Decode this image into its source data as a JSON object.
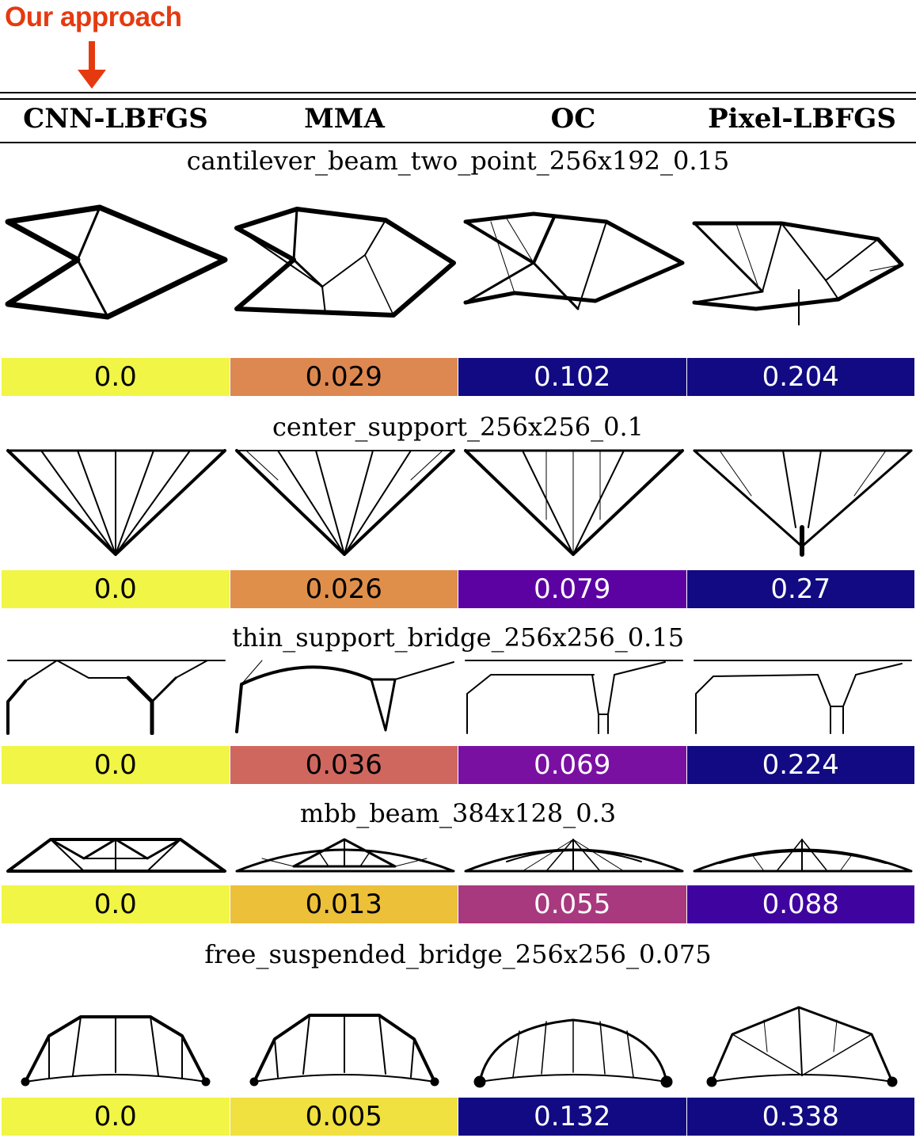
{
  "annotation": {
    "label": "Our approach",
    "color": "#e53a10"
  },
  "columns": [
    "CNN-LBFGS",
    "MMA",
    "OC",
    "Pixel-LBFGS"
  ],
  "rows": [
    {
      "title": "cantilever_beam_two_point_256x192_0.15",
      "scores": [
        {
          "value": "0.0",
          "bg": "#f1f545",
          "fg": "#000000"
        },
        {
          "value": "0.029",
          "bg": "#dd8850",
          "fg": "#000000"
        },
        {
          "value": "0.102",
          "bg": "#110a82",
          "fg": "#ffffff"
        },
        {
          "value": "0.204",
          "bg": "#110a82",
          "fg": "#ffffff"
        }
      ]
    },
    {
      "title": "center_support_256x256_0.1",
      "scores": [
        {
          "value": "0.0",
          "bg": "#f1f545",
          "fg": "#000000"
        },
        {
          "value": "0.026",
          "bg": "#e08f4a",
          "fg": "#000000"
        },
        {
          "value": "0.079",
          "bg": "#5c02a3",
          "fg": "#ffffff"
        },
        {
          "value": "0.27",
          "bg": "#110a82",
          "fg": "#ffffff"
        }
      ]
    },
    {
      "title": "thin_support_bridge_256x256_0.15",
      "scores": [
        {
          "value": "0.0",
          "bg": "#f1f545",
          "fg": "#000000"
        },
        {
          "value": "0.036",
          "bg": "#d0675e",
          "fg": "#000000"
        },
        {
          "value": "0.069",
          "bg": "#7a10a1",
          "fg": "#ffffff"
        },
        {
          "value": "0.224",
          "bg": "#110a82",
          "fg": "#ffffff"
        }
      ]
    },
    {
      "title": "mbb_beam_384x128_0.3",
      "scores": [
        {
          "value": "0.0",
          "bg": "#f1f545",
          "fg": "#000000"
        },
        {
          "value": "0.013",
          "bg": "#edc03a",
          "fg": "#000000"
        },
        {
          "value": "0.055",
          "bg": "#a8397e",
          "fg": "#ffffff"
        },
        {
          "value": "0.088",
          "bg": "#3f03a0",
          "fg": "#ffffff"
        }
      ]
    },
    {
      "title": "free_suspended_bridge_256x256_0.075",
      "scores": [
        {
          "value": "0.0",
          "bg": "#f1f545",
          "fg": "#000000"
        },
        {
          "value": "0.005",
          "bg": "#f0e040",
          "fg": "#000000"
        },
        {
          "value": "0.132",
          "bg": "#110a82",
          "fg": "#ffffff"
        },
        {
          "value": "0.338",
          "bg": "#110a82",
          "fg": "#ffffff"
        }
      ]
    }
  ]
}
